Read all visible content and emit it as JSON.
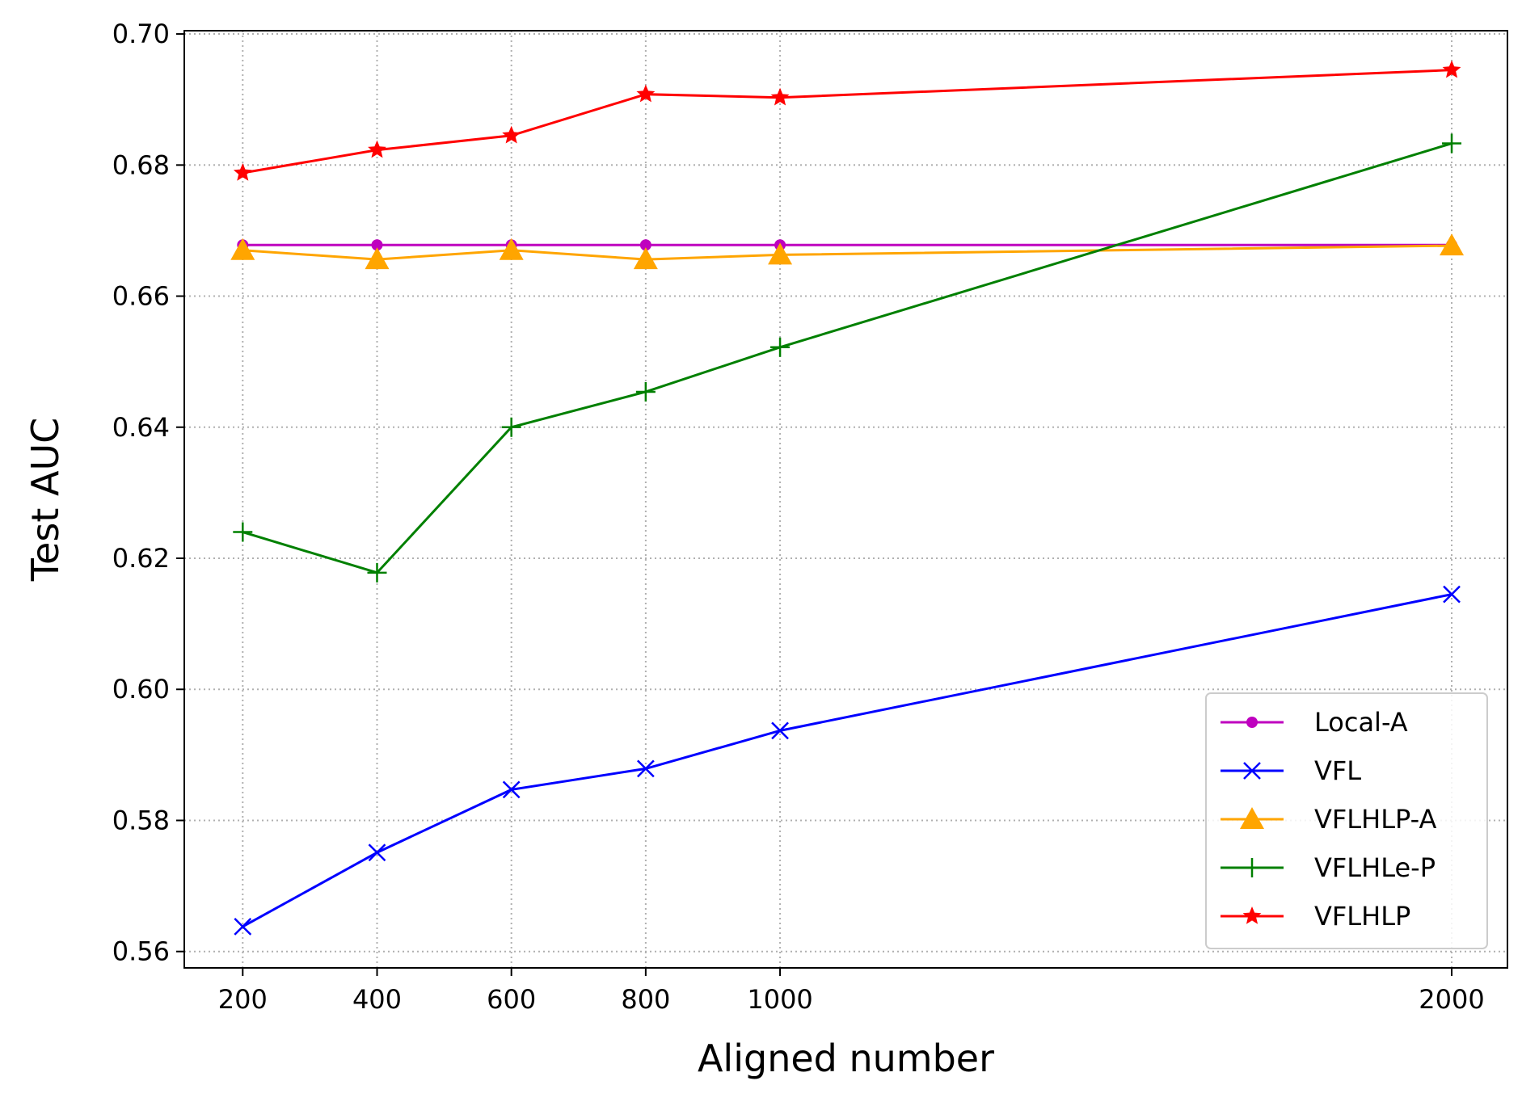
{
  "chart_data": {
    "type": "line",
    "title": "",
    "xlabel": "Aligned number",
    "ylabel": "Test AUC",
    "x": [
      200,
      400,
      600,
      800,
      1000,
      2000
    ],
    "xticks": [
      200,
      400,
      600,
      800,
      1000,
      2000
    ],
    "xtick_labels": [
      "200",
      "400",
      "600",
      "800",
      "1000",
      "2000"
    ],
    "xlim": [
      113,
      2083
    ],
    "ylim": [
      0.5575,
      0.7005
    ],
    "yticks": [
      0.56,
      0.58,
      0.6,
      0.62,
      0.64,
      0.66,
      0.68,
      0.7
    ],
    "ytick_labels": [
      "0.56",
      "0.58",
      "0.60",
      "0.62",
      "0.64",
      "0.66",
      "0.68",
      "0.70"
    ],
    "grid": true,
    "legend_position": "lower-right",
    "series": [
      {
        "name": "Local-A",
        "color": "#bf00bf",
        "marker": "dot",
        "values": [
          0.6678,
          0.6678,
          0.6678,
          0.6678,
          0.6678,
          0.6678
        ]
      },
      {
        "name": "VFL",
        "color": "#0000ff",
        "marker": "x",
        "values": [
          0.5638,
          0.5751,
          0.5847,
          0.5879,
          0.5937,
          0.6145
        ]
      },
      {
        "name": "VFLHLP-A",
        "color": "#ffa500",
        "marker": "triangle",
        "values": [
          0.667,
          0.6656,
          0.667,
          0.6656,
          0.6663,
          0.6677
        ]
      },
      {
        "name": "VFLHLe-P",
        "color": "#008000",
        "marker": "plus",
        "values": [
          0.624,
          0.6178,
          0.64,
          0.6454,
          0.6522,
          0.6833
        ]
      },
      {
        "name": "VFLHLP",
        "color": "#ff0000",
        "marker": "star",
        "values": [
          0.6788,
          0.6823,
          0.6845,
          0.6908,
          0.6903,
          0.6945
        ]
      }
    ]
  }
}
